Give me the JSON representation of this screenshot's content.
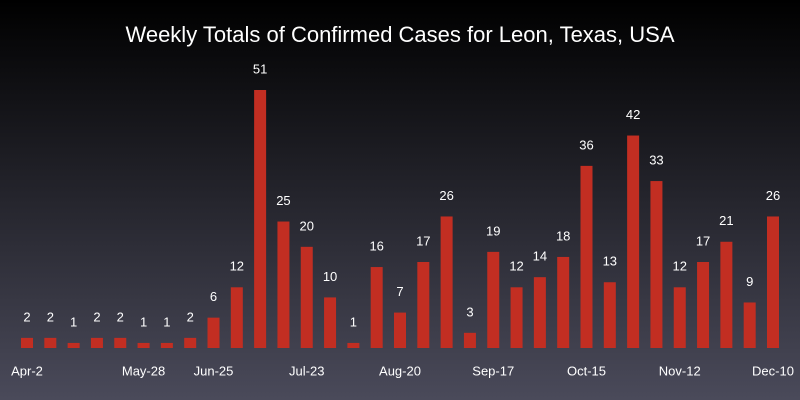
{
  "chart_data": {
    "type": "bar",
    "title": "Weekly Totals of Confirmed Cases for Leon, Texas, USA",
    "categories": [
      "Apr-2",
      null,
      null,
      null,
      null,
      "May-28",
      null,
      null,
      "Jun-25",
      null,
      null,
      null,
      "Jul-23",
      null,
      null,
      null,
      "Aug-20",
      null,
      null,
      null,
      "Sep-17",
      null,
      null,
      null,
      "Oct-15",
      null,
      null,
      null,
      "Nov-12",
      null,
      null,
      null,
      "Dec-10"
    ],
    "values": [
      2,
      2,
      1,
      2,
      2,
      1,
      1,
      2,
      6,
      12,
      51,
      25,
      20,
      10,
      1,
      16,
      7,
      17,
      26,
      3,
      19,
      12,
      14,
      18,
      36,
      13,
      42,
      33,
      12,
      17,
      21,
      9,
      26
    ],
    "color": "#c22e22"
  }
}
